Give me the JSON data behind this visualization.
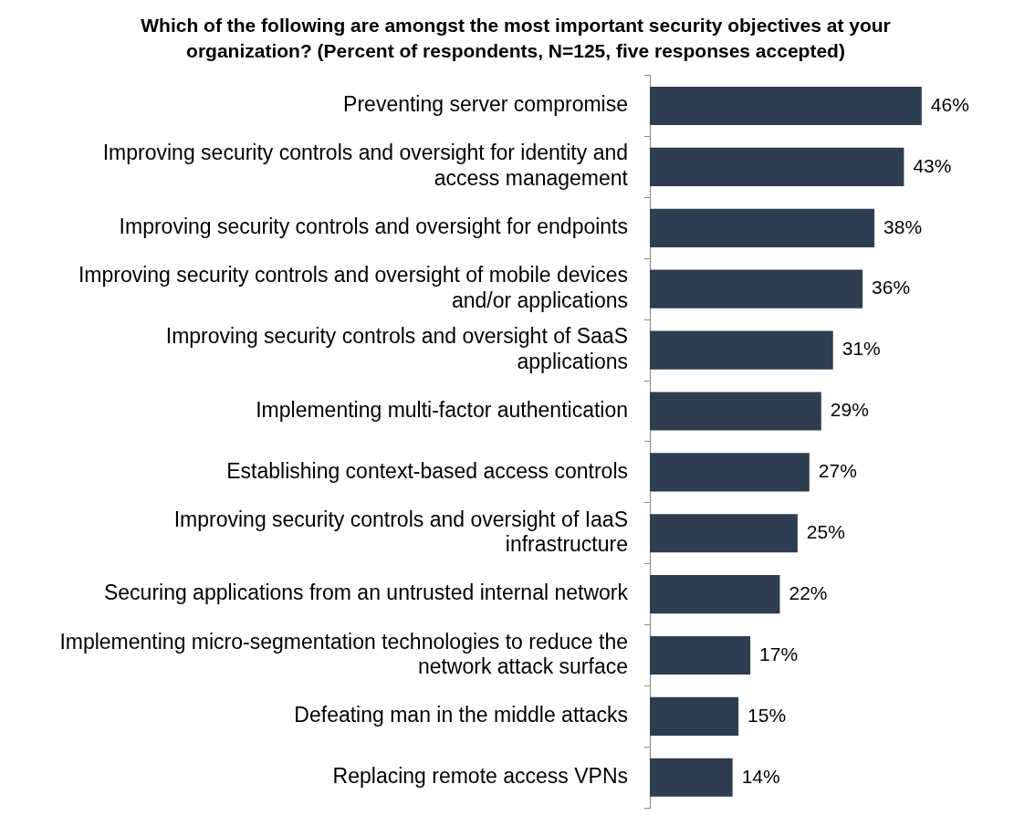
{
  "chart_data": {
    "type": "bar",
    "orientation": "horizontal",
    "title": "Which of the following are amongst the most important security objectives at your organization? (Percent of respondents, N=125, five responses accepted)",
    "categories": [
      "Preventing server compromise",
      "Improving security controls and oversight for identity and access management",
      "Improving security controls and oversight for endpoints",
      "Improving security controls and oversight of mobile devices and/or applications",
      "Improving security controls and oversight of SaaS applications",
      "Implementing multi-factor authentication",
      "Establishing context-based access controls",
      "Improving security controls and oversight of IaaS infrastructure",
      "Securing applications from an untrusted internal network",
      "Implementing micro-segmentation technologies to reduce the network attack surface",
      "Defeating man in the middle attacks",
      "Replacing remote access VPNs"
    ],
    "values": [
      46,
      43,
      38,
      36,
      31,
      29,
      27,
      25,
      22,
      17,
      15,
      14
    ],
    "value_labels": [
      "46%",
      "43%",
      "38%",
      "36%",
      "31%",
      "29%",
      "27%",
      "25%",
      "22%",
      "17%",
      "15%",
      "14%"
    ],
    "color": "#2e3d4f",
    "grid": false,
    "legend": false
  }
}
